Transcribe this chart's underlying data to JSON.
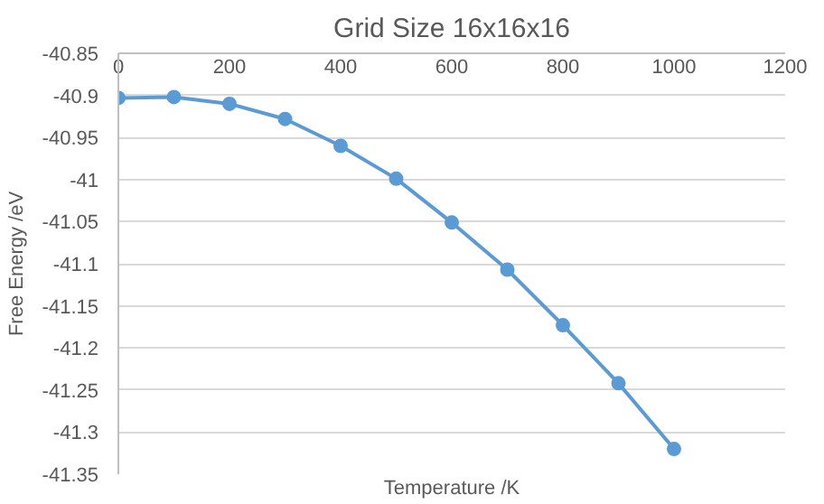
{
  "chart_data": {
    "type": "line",
    "title": "Grid Size 16x16x16",
    "xlabel": "Temperature /K",
    "ylabel": "Free Energy /eV",
    "x": [
      0,
      100,
      200,
      300,
      400,
      500,
      600,
      700,
      800,
      900,
      1000
    ],
    "series": [
      {
        "color": "#5b9bd5",
        "values": [
          -40.903,
          -40.902,
          -40.91,
          -40.928,
          -40.96,
          -40.999,
          -41.051,
          -41.107,
          -41.173,
          -41.242,
          -41.32
        ]
      }
    ],
    "xlim": [
      0,
      1200
    ],
    "xticks": [
      0,
      200,
      400,
      600,
      800,
      1000,
      1200
    ],
    "ylim": [
      -41.35,
      -40.85
    ],
    "yticks": [
      -41.35,
      -41.3,
      -41.25,
      -41.2,
      -41.15,
      -41.1,
      -41.05,
      -41.0,
      -40.95,
      -40.9,
      -40.85
    ],
    "grid": "y",
    "marker": "circle",
    "line_style": "solid"
  }
}
